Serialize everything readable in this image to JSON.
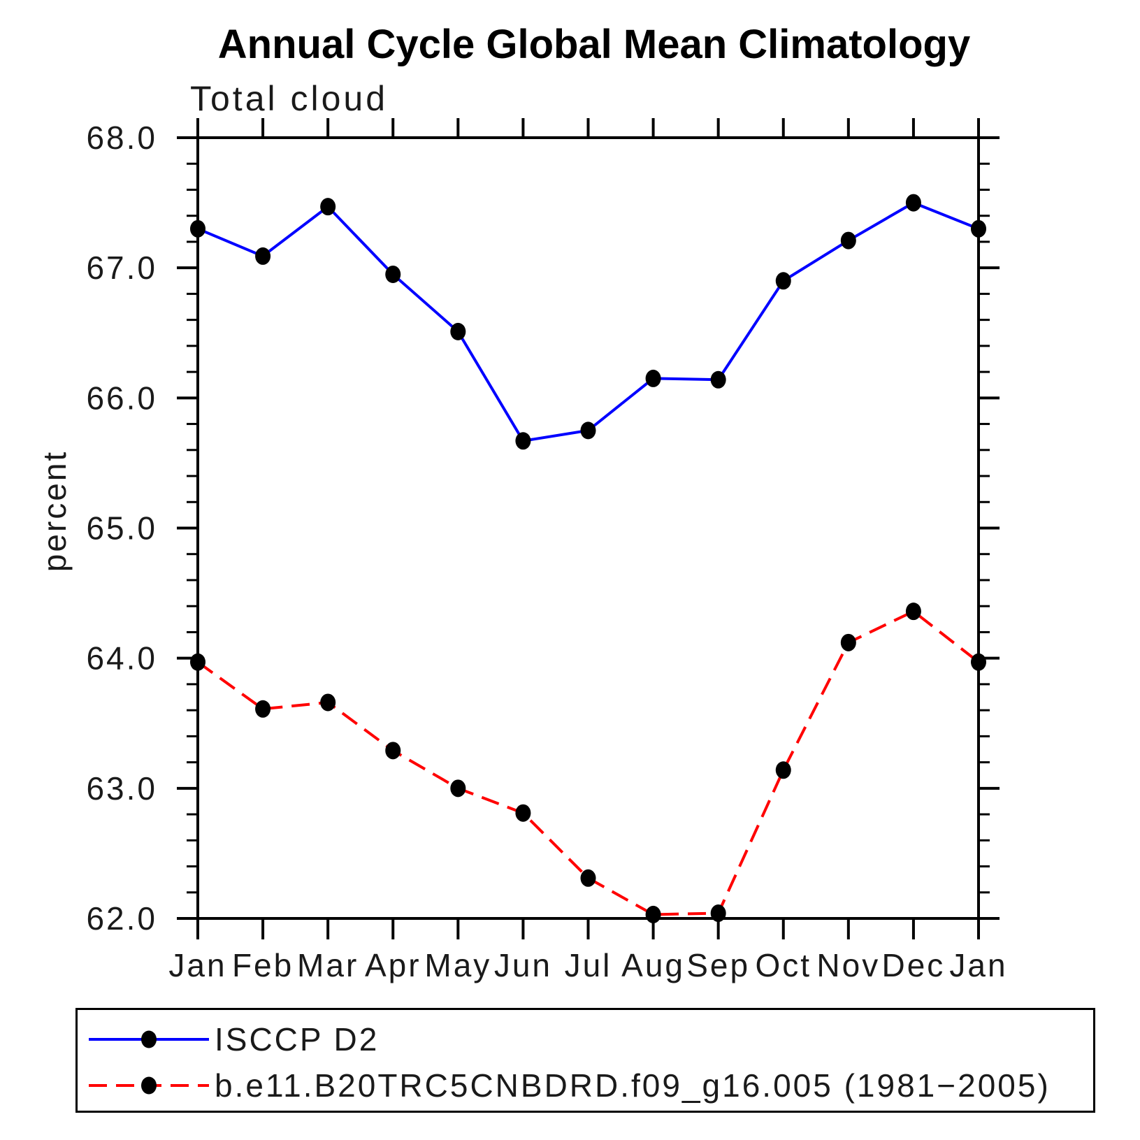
{
  "chart_data": {
    "type": "line",
    "title": "Annual Cycle Global Mean Climatology",
    "subtitle": "Total cloud",
    "xlabel": "",
    "ylabel": "percent",
    "categories": [
      "Jan",
      "Feb",
      "Mar",
      "Apr",
      "May",
      "Jun",
      "Jul",
      "Aug",
      "Sep",
      "Oct",
      "Nov",
      "Dec",
      "Jan"
    ],
    "ylim": [
      62.0,
      68.0
    ],
    "y_tick_labels": [
      "62.0",
      "63.0",
      "64.0",
      "65.0",
      "66.0",
      "67.0",
      "68.0"
    ],
    "y_major_step": 1.0,
    "y_minor_step": 0.2,
    "grid": "off",
    "legend_position": "bottom-left-box",
    "marker_color": "#000000",
    "frame_color": "#000000",
    "series": [
      {
        "name": "ISCCP D2",
        "color": "#0000ff",
        "style": "solid",
        "values": [
          67.3,
          67.09,
          67.47,
          66.95,
          66.51,
          65.67,
          65.75,
          66.15,
          66.14,
          66.9,
          67.21,
          67.5,
          67.3
        ]
      },
      {
        "name": "b.e11.B20TRC5CNBDRD.f09_g16.005 (1981−2005)",
        "color": "#ff0000",
        "style": "dashed",
        "values": [
          63.97,
          63.61,
          63.66,
          63.29,
          63.0,
          62.81,
          62.31,
          62.03,
          62.04,
          63.14,
          64.12,
          64.36,
          63.97
        ]
      }
    ]
  }
}
